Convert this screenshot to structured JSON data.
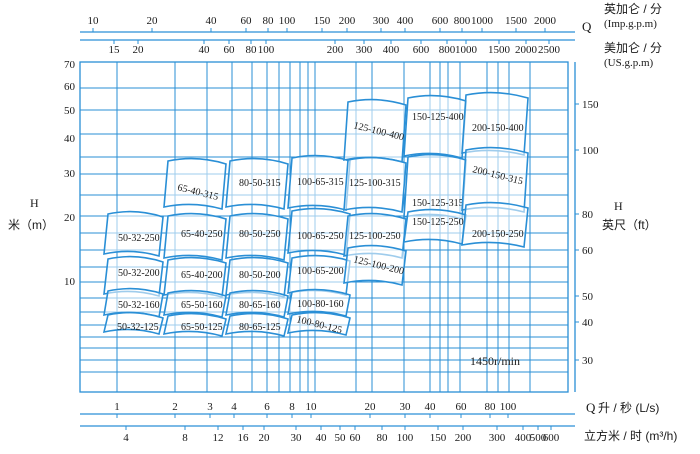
{
  "chart_data": {
    "type": "pump-selection-chart",
    "speed_label": "1450r/min",
    "x_axis": {
      "top1_tick_labels": [
        "10",
        "20",
        "40",
        "60",
        "80",
        "100",
        "150",
        "200",
        "300",
        "400",
        "600",
        "800",
        "1000",
        "1500",
        "2000"
      ],
      "top1_unit_cn": "英加仑 / 分",
      "top1_unit_en": "(Imp.g.p.m)",
      "top_symbol": "Q",
      "top2_tick_labels": [
        "15",
        "20",
        "40",
        "60",
        "80",
        "100",
        "200",
        "300",
        "400",
        "600",
        "800",
        "1000",
        "1500",
        "2000",
        "2500"
      ],
      "top2_unit_cn": "美加仑 / 分",
      "top2_unit_en": "(US.g.p.m)",
      "bottom1_tick_labels": [
        "1",
        "2",
        "3",
        "4",
        "6",
        "8",
        "10",
        "20",
        "30",
        "40",
        "60",
        "80",
        "100"
      ],
      "bottom1_symbol": "Q",
      "bottom1_unit": "升 / 秒 (L/s)",
      "bottom2_tick_labels": [
        "4",
        "8",
        "12",
        "16",
        "20",
        "30",
        "40",
        "50",
        "60",
        "80",
        "100",
        "150",
        "200",
        "300",
        "400",
        "500",
        "600"
      ],
      "bottom2_unit": "立方米 / 时 (m³/h)"
    },
    "y_axis": {
      "left_symbol": "H",
      "left_unit": "米（m）",
      "left_tick_labels": [
        "70",
        "60",
        "50",
        "40",
        "30",
        "20",
        "10"
      ],
      "right_symbol": "H",
      "right_unit": "英尺（ft）",
      "right_tick_labels": [
        "150",
        "100",
        "80",
        "60",
        "50",
        "40",
        "30"
      ]
    },
    "pump_models": [
      {
        "label": "50-32-250"
      },
      {
        "label": "50-32-200"
      },
      {
        "label": "50-32-160"
      },
      {
        "label": "50-32-125"
      },
      {
        "label": "65-40-315"
      },
      {
        "label": "65-40-250"
      },
      {
        "label": "65-40-200"
      },
      {
        "label": "65-50-160"
      },
      {
        "label": "65-50-125"
      },
      {
        "label": "80-50-315"
      },
      {
        "label": "80-50-250"
      },
      {
        "label": "80-50-200"
      },
      {
        "label": "80-65-160"
      },
      {
        "label": "80-65-125"
      },
      {
        "label": "100-65-315"
      },
      {
        "label": "100-65-250"
      },
      {
        "label": "100-65-200"
      },
      {
        "label": "100-80-160"
      },
      {
        "label": "100-80-125"
      },
      {
        "label": "125-100-400"
      },
      {
        "label": "125-100-315"
      },
      {
        "label": "125-100-250"
      },
      {
        "label": "125-100-200"
      },
      {
        "label": "150-125-400"
      },
      {
        "label": "150-125-315"
      },
      {
        "label": "150-125-250"
      },
      {
        "label": "200-150-400"
      },
      {
        "label": "200-150-315"
      },
      {
        "label": "200-150-250"
      }
    ],
    "color": "#2a8fd6"
  }
}
